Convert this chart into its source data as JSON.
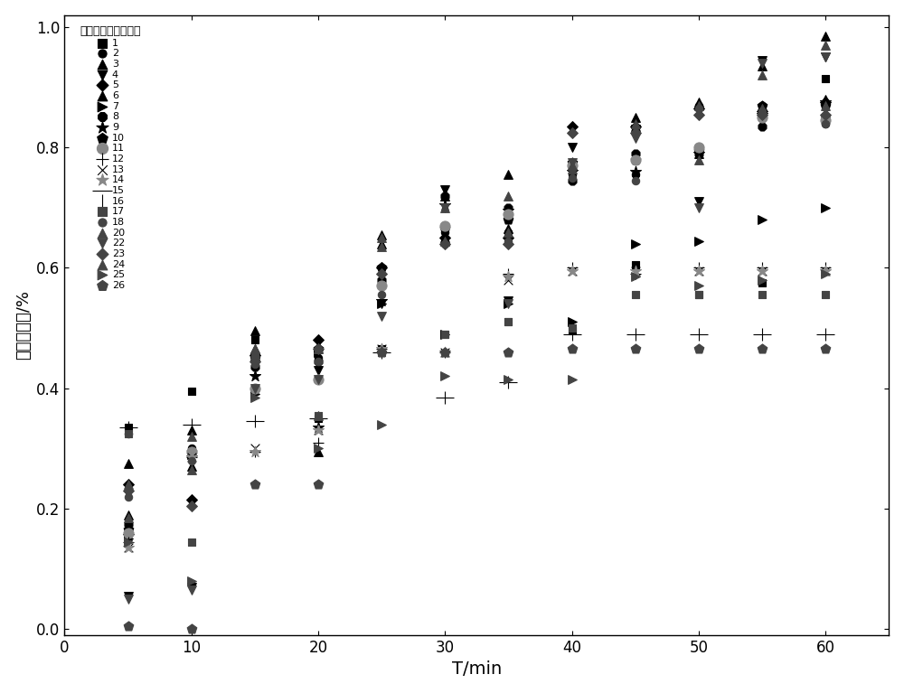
{
  "xlabel": "T/min",
  "ylabel": "甲醛去除率/%",
  "legend_title": "重复使用次数（次）",
  "xlim": [
    0,
    65
  ],
  "ylim": [
    -0.01,
    1.02
  ],
  "yticks": [
    0.0,
    0.2,
    0.4,
    0.6,
    0.8,
    1.0
  ],
  "xticks": [
    0,
    10,
    20,
    30,
    40,
    50,
    60
  ],
  "series": [
    {
      "label": "1",
      "marker": "s",
      "color": "#000000",
      "ms": 6,
      "data": [
        [
          5,
          0.335
        ],
        [
          10,
          0.395
        ],
        [
          15,
          0.48
        ],
        [
          20,
          0.35
        ],
        [
          25,
          0.465
        ],
        [
          30,
          0.49
        ],
        [
          35,
          0.51
        ],
        [
          40,
          0.495
        ],
        [
          45,
          0.605
        ],
        [
          50,
          0.555
        ],
        [
          55,
          0.575
        ],
        [
          60,
          0.915
        ]
      ]
    },
    {
      "label": "2",
      "marker": "o",
      "color": "#000000",
      "ms": 6,
      "data": [
        [
          5,
          0.325
        ],
        [
          10,
          0.3
        ],
        [
          15,
          0.45
        ],
        [
          20,
          0.45
        ],
        [
          25,
          0.57
        ],
        [
          30,
          0.66
        ],
        [
          35,
          0.66
        ],
        [
          40,
          0.755
        ],
        [
          45,
          0.755
        ],
        [
          50,
          0.87
        ],
        [
          55,
          0.87
        ],
        [
          60,
          0.84
        ]
      ]
    },
    {
      "label": "3",
      "marker": "^",
      "color": "#000000",
      "ms": 7,
      "data": [
        [
          5,
          0.275
        ],
        [
          10,
          0.27
        ],
        [
          15,
          0.495
        ],
        [
          20,
          0.295
        ],
        [
          25,
          0.655
        ],
        [
          30,
          0.72
        ],
        [
          35,
          0.755
        ],
        [
          40,
          0.77
        ],
        [
          45,
          0.835
        ],
        [
          50,
          0.875
        ],
        [
          55,
          0.935
        ],
        [
          60,
          0.985
        ]
      ]
    },
    {
      "label": "4",
      "marker": "v",
      "color": "#000000",
      "ms": 7,
      "data": [
        [
          5,
          0.055
        ],
        [
          10,
          0.07
        ],
        [
          15,
          0.44
        ],
        [
          20,
          0.43
        ],
        [
          25,
          0.54
        ],
        [
          30,
          0.73
        ],
        [
          35,
          0.545
        ],
        [
          40,
          0.8
        ],
        [
          45,
          0.83
        ],
        [
          50,
          0.71
        ],
        [
          55,
          0.945
        ],
        [
          60,
          0.95
        ]
      ]
    },
    {
      "label": "5",
      "marker": "D",
      "color": "#000000",
      "ms": 6,
      "data": [
        [
          5,
          0.24
        ],
        [
          10,
          0.215
        ],
        [
          15,
          0.455
        ],
        [
          20,
          0.48
        ],
        [
          25,
          0.6
        ],
        [
          30,
          0.65
        ],
        [
          35,
          0.65
        ],
        [
          40,
          0.835
        ],
        [
          45,
          0.835
        ],
        [
          50,
          0.865
        ],
        [
          55,
          0.86
        ],
        [
          60,
          0.875
        ]
      ]
    },
    {
      "label": "6",
      "marker": "^",
      "color": "#000000",
      "ms": 7,
      "data": [
        [
          5,
          0.19
        ],
        [
          10,
          0.33
        ],
        [
          15,
          0.465
        ],
        [
          20,
          0.47
        ],
        [
          25,
          0.64
        ],
        [
          30,
          0.65
        ],
        [
          35,
          0.665
        ],
        [
          40,
          0.775
        ],
        [
          45,
          0.85
        ],
        [
          50,
          0.79
        ],
        [
          55,
          0.87
        ],
        [
          60,
          0.88
        ]
      ]
    },
    {
      "label": "7",
      "marker": ">",
      "color": "#000000",
      "ms": 7,
      "data": [
        [
          5,
          0.15
        ],
        [
          10,
          0.29
        ],
        [
          15,
          0.39
        ],
        [
          20,
          0.46
        ],
        [
          25,
          0.54
        ],
        [
          30,
          0.49
        ],
        [
          35,
          0.54
        ],
        [
          40,
          0.51
        ],
        [
          45,
          0.64
        ],
        [
          50,
          0.645
        ],
        [
          55,
          0.68
        ],
        [
          60,
          0.7
        ]
      ]
    },
    {
      "label": "8",
      "marker": "8",
      "color": "#000000",
      "ms": 7,
      "data": [
        [
          5,
          0.175
        ],
        [
          10,
          0.29
        ],
        [
          15,
          0.435
        ],
        [
          20,
          0.445
        ],
        [
          25,
          0.58
        ],
        [
          30,
          0.72
        ],
        [
          35,
          0.7
        ],
        [
          40,
          0.745
        ],
        [
          45,
          0.79
        ],
        [
          50,
          0.79
        ],
        [
          55,
          0.835
        ],
        [
          60,
          0.85
        ]
      ]
    },
    {
      "label": "9",
      "marker": "*",
      "color": "#000000",
      "ms": 9,
      "data": [
        [
          5,
          0.155
        ],
        [
          10,
          0.285
        ],
        [
          15,
          0.42
        ],
        [
          20,
          0.335
        ],
        [
          25,
          0.545
        ],
        [
          30,
          0.705
        ],
        [
          35,
          0.695
        ],
        [
          40,
          0.76
        ],
        [
          45,
          0.76
        ],
        [
          50,
          0.79
        ],
        [
          55,
          0.855
        ],
        [
          60,
          0.875
        ]
      ]
    },
    {
      "label": "10",
      "marker": "p",
      "color": "#000000",
      "ms": 8,
      "data": [
        [
          5,
          0.165
        ],
        [
          10,
          0.295
        ],
        [
          15,
          0.45
        ],
        [
          20,
          0.465
        ],
        [
          25,
          0.6
        ],
        [
          30,
          0.665
        ],
        [
          35,
          0.68
        ],
        [
          40,
          0.775
        ],
        [
          45,
          0.78
        ],
        [
          50,
          0.795
        ],
        [
          55,
          0.87
        ],
        [
          60,
          0.87
        ]
      ]
    },
    {
      "label": "11",
      "marker": "o",
      "color": "#888888",
      "ms": 8,
      "data": [
        [
          5,
          0.16
        ],
        [
          10,
          0.295
        ],
        [
          15,
          0.4
        ],
        [
          20,
          0.415
        ],
        [
          25,
          0.57
        ],
        [
          30,
          0.67
        ],
        [
          35,
          0.69
        ],
        [
          40,
          0.77
        ],
        [
          45,
          0.78
        ],
        [
          50,
          0.8
        ],
        [
          55,
          0.85
        ],
        [
          60,
          0.845
        ]
      ]
    },
    {
      "label": "12",
      "marker": "+",
      "color": "#000000",
      "ms": 9,
      "data": [
        [
          5,
          0.145
        ],
        [
          10,
          0.285
        ],
        [
          15,
          0.295
        ],
        [
          20,
          0.31
        ],
        [
          25,
          0.465
        ],
        [
          30,
          0.46
        ],
        [
          35,
          0.59
        ],
        [
          40,
          0.6
        ],
        [
          45,
          0.59
        ],
        [
          50,
          0.6
        ],
        [
          55,
          0.6
        ],
        [
          60,
          0.6
        ]
      ]
    },
    {
      "label": "13",
      "marker": "x",
      "color": "#000000",
      "ms": 7,
      "data": [
        [
          5,
          0.135
        ],
        [
          10,
          0.285
        ],
        [
          15,
          0.3
        ],
        [
          20,
          0.33
        ],
        [
          25,
          0.465
        ],
        [
          30,
          0.46
        ],
        [
          35,
          0.58
        ],
        [
          40,
          0.595
        ],
        [
          45,
          0.595
        ],
        [
          50,
          0.595
        ],
        [
          55,
          0.595
        ],
        [
          60,
          0.595
        ]
      ]
    },
    {
      "label": "14",
      "marker": "*",
      "color": "#888888",
      "ms": 9,
      "data": [
        [
          5,
          0.135
        ],
        [
          10,
          0.285
        ],
        [
          15,
          0.295
        ],
        [
          20,
          0.33
        ],
        [
          25,
          0.465
        ],
        [
          30,
          0.46
        ],
        [
          35,
          0.585
        ],
        [
          40,
          0.595
        ],
        [
          45,
          0.595
        ],
        [
          50,
          0.595
        ],
        [
          55,
          0.595
        ],
        [
          60,
          0.595
        ]
      ]
    },
    {
      "label": "15",
      "marker": "_",
      "color": "#000000",
      "ms": 14,
      "data": [
        [
          5,
          0.335
        ],
        [
          10,
          0.34
        ],
        [
          15,
          0.345
        ],
        [
          20,
          0.35
        ],
        [
          25,
          0.46
        ],
        [
          30,
          0.385
        ],
        [
          35,
          0.41
        ],
        [
          40,
          0.49
        ],
        [
          45,
          0.49
        ],
        [
          50,
          0.49
        ],
        [
          55,
          0.49
        ],
        [
          60,
          0.49
        ]
      ]
    },
    {
      "label": "16",
      "marker": "|",
      "color": "#000000",
      "ms": 10,
      "data": [
        [
          5,
          0.335
        ],
        [
          10,
          0.34
        ],
        [
          15,
          0.345
        ],
        [
          20,
          0.35
        ],
        [
          25,
          0.46
        ],
        [
          30,
          0.385
        ],
        [
          35,
          0.41
        ],
        [
          40,
          0.49
        ],
        [
          45,
          0.49
        ],
        [
          50,
          0.49
        ],
        [
          55,
          0.49
        ],
        [
          60,
          0.49
        ]
      ]
    },
    {
      "label": "17",
      "marker": "s",
      "color": "#444444",
      "ms": 6,
      "data": [
        [
          5,
          0.325
        ],
        [
          10,
          0.145
        ],
        [
          15,
          0.455
        ],
        [
          20,
          0.355
        ],
        [
          25,
          0.46
        ],
        [
          30,
          0.49
        ],
        [
          35,
          0.51
        ],
        [
          40,
          0.5
        ],
        [
          45,
          0.555
        ],
        [
          50,
          0.555
        ],
        [
          55,
          0.555
        ],
        [
          60,
          0.555
        ]
      ]
    },
    {
      "label": "18",
      "marker": "o",
      "color": "#444444",
      "ms": 6,
      "data": [
        [
          5,
          0.22
        ],
        [
          10,
          0.28
        ],
        [
          15,
          0.44
        ],
        [
          20,
          0.445
        ],
        [
          25,
          0.555
        ],
        [
          30,
          0.64
        ],
        [
          35,
          0.645
        ],
        [
          40,
          0.75
        ],
        [
          45,
          0.745
        ],
        [
          50,
          0.865
        ],
        [
          55,
          0.86
        ],
        [
          60,
          0.84
        ]
      ]
    },
    {
      "label": "20",
      "marker": "^",
      "color": "#444444",
      "ms": 7,
      "data": [
        [
          5,
          0.24
        ],
        [
          10,
          0.265
        ],
        [
          15,
          0.465
        ],
        [
          20,
          0.355
        ],
        [
          25,
          0.65
        ],
        [
          30,
          0.7
        ],
        [
          35,
          0.72
        ],
        [
          40,
          0.77
        ],
        [
          45,
          0.83
        ],
        [
          50,
          0.87
        ],
        [
          55,
          0.92
        ],
        [
          60,
          0.97
        ]
      ]
    },
    {
      "label": "22",
      "marker": "v",
      "color": "#444444",
      "ms": 7,
      "data": [
        [
          5,
          0.05
        ],
        [
          10,
          0.065
        ],
        [
          15,
          0.4
        ],
        [
          20,
          0.415
        ],
        [
          25,
          0.52
        ],
        [
          30,
          0.7
        ],
        [
          35,
          0.54
        ],
        [
          40,
          0.775
        ],
        [
          45,
          0.815
        ],
        [
          50,
          0.7
        ],
        [
          55,
          0.94
        ],
        [
          60,
          0.95
        ]
      ]
    },
    {
      "label": "23",
      "marker": "D",
      "color": "#444444",
      "ms": 6,
      "data": [
        [
          5,
          0.23
        ],
        [
          10,
          0.205
        ],
        [
          15,
          0.445
        ],
        [
          20,
          0.465
        ],
        [
          25,
          0.59
        ],
        [
          30,
          0.64
        ],
        [
          35,
          0.64
        ],
        [
          40,
          0.825
        ],
        [
          45,
          0.825
        ],
        [
          50,
          0.855
        ],
        [
          55,
          0.855
        ],
        [
          60,
          0.855
        ]
      ]
    },
    {
      "label": "24",
      "marker": "^",
      "color": "#444444",
      "ms": 7,
      "data": [
        [
          5,
          0.185
        ],
        [
          10,
          0.32
        ],
        [
          15,
          0.46
        ],
        [
          20,
          0.465
        ],
        [
          25,
          0.635
        ],
        [
          30,
          0.645
        ],
        [
          35,
          0.66
        ],
        [
          40,
          0.765
        ],
        [
          45,
          0.84
        ],
        [
          50,
          0.78
        ],
        [
          55,
          0.865
        ],
        [
          60,
          0.87
        ]
      ]
    },
    {
      "label": "25",
      "marker": ">",
      "color": "#444444",
      "ms": 7,
      "data": [
        [
          5,
          0.145
        ],
        [
          10,
          0.08
        ],
        [
          15,
          0.385
        ],
        [
          20,
          0.3
        ],
        [
          25,
          0.34
        ],
        [
          30,
          0.42
        ],
        [
          35,
          0.415
        ],
        [
          40,
          0.415
        ],
        [
          45,
          0.585
        ],
        [
          50,
          0.57
        ],
        [
          55,
          0.58
        ],
        [
          60,
          0.59
        ]
      ]
    },
    {
      "label": "26",
      "marker": "p",
      "color": "#444444",
      "ms": 8,
      "data": [
        [
          5,
          0.005
        ],
        [
          10,
          0.001
        ],
        [
          15,
          0.24
        ],
        [
          20,
          0.24
        ],
        [
          25,
          0.46
        ],
        [
          30,
          0.46
        ],
        [
          35,
          0.46
        ],
        [
          40,
          0.465
        ],
        [
          45,
          0.465
        ],
        [
          50,
          0.465
        ],
        [
          55,
          0.465
        ],
        [
          60,
          0.465
        ]
      ]
    }
  ]
}
